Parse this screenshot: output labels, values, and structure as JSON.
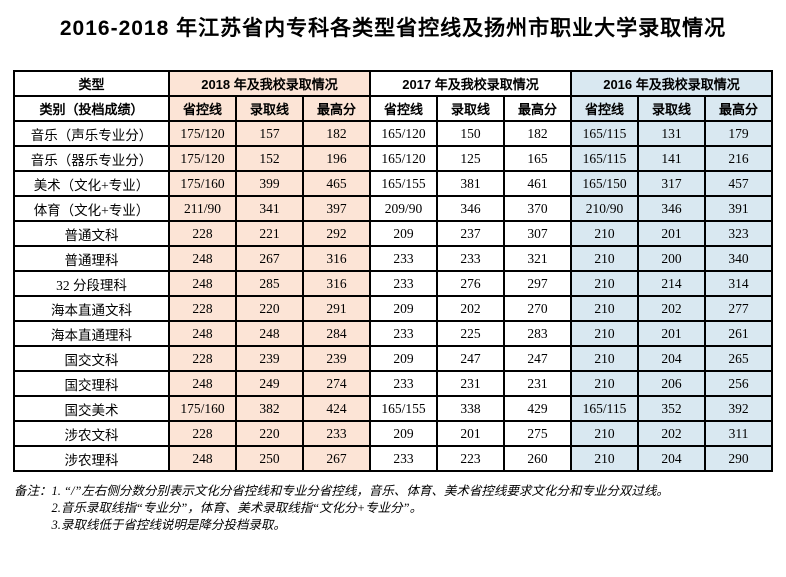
{
  "title": "2016-2018 年江苏省内专科各类型省控线及扬州市职业大学录取情况",
  "table": {
    "header": {
      "type_label": "类型",
      "category_label": "类别（投档成绩）",
      "year_groups": [
        {
          "label": "2018 年及我校录取情况",
          "fill": "#fce4d6"
        },
        {
          "label": "2017 年及我校录取情况",
          "fill": "#ffffff"
        },
        {
          "label": "2016 年及我校录取情况",
          "fill": "#d9e8f1"
        }
      ],
      "sub_columns": [
        "省控线",
        "录取线",
        "最高分"
      ]
    },
    "rows": [
      {
        "label": "音乐（声乐专业分）",
        "y2018": [
          "175/120",
          "157",
          "182"
        ],
        "y2017": [
          "165/120",
          "150",
          "182"
        ],
        "y2016": [
          "165/115",
          "131",
          "179"
        ]
      },
      {
        "label": "音乐（器乐专业分）",
        "y2018": [
          "175/120",
          "152",
          "196"
        ],
        "y2017": [
          "165/120",
          "125",
          "165"
        ],
        "y2016": [
          "165/115",
          "141",
          "216"
        ]
      },
      {
        "label": "美术（文化+专业）",
        "y2018": [
          "175/160",
          "399",
          "465"
        ],
        "y2017": [
          "165/155",
          "381",
          "461"
        ],
        "y2016": [
          "165/150",
          "317",
          "457"
        ]
      },
      {
        "label": "体育（文化+专业）",
        "y2018": [
          "211/90",
          "341",
          "397"
        ],
        "y2017": [
          "209/90",
          "346",
          "370"
        ],
        "y2016": [
          "210/90",
          "346",
          "391"
        ]
      },
      {
        "label": "普通文科",
        "y2018": [
          "228",
          "221",
          "292"
        ],
        "y2017": [
          "209",
          "237",
          "307"
        ],
        "y2016": [
          "210",
          "201",
          "323"
        ]
      },
      {
        "label": "普通理科",
        "y2018": [
          "248",
          "267",
          "316"
        ],
        "y2017": [
          "233",
          "233",
          "321"
        ],
        "y2016": [
          "210",
          "200",
          "340"
        ]
      },
      {
        "label": "32 分段理科",
        "y2018": [
          "248",
          "285",
          "316"
        ],
        "y2017": [
          "233",
          "276",
          "297"
        ],
        "y2016": [
          "210",
          "214",
          "314"
        ]
      },
      {
        "label": "海本直通文科",
        "y2018": [
          "228",
          "220",
          "291"
        ],
        "y2017": [
          "209",
          "202",
          "270"
        ],
        "y2016": [
          "210",
          "202",
          "277"
        ]
      },
      {
        "label": "海本直通理科",
        "y2018": [
          "248",
          "248",
          "284"
        ],
        "y2017": [
          "233",
          "225",
          "283"
        ],
        "y2016": [
          "210",
          "201",
          "261"
        ]
      },
      {
        "label": "国交文科",
        "y2018": [
          "228",
          "239",
          "239"
        ],
        "y2017": [
          "209",
          "247",
          "247"
        ],
        "y2016": [
          "210",
          "204",
          "265"
        ]
      },
      {
        "label": "国交理科",
        "y2018": [
          "248",
          "249",
          "274"
        ],
        "y2017": [
          "233",
          "231",
          "231"
        ],
        "y2016": [
          "210",
          "206",
          "256"
        ]
      },
      {
        "label": "国交美术",
        "y2018": [
          "175/160",
          "382",
          "424"
        ],
        "y2017": [
          "165/155",
          "338",
          "429"
        ],
        "y2016": [
          "165/115",
          "352",
          "392"
        ]
      },
      {
        "label": "涉农文科",
        "y2018": [
          "228",
          "220",
          "233"
        ],
        "y2017": [
          "209",
          "201",
          "275"
        ],
        "y2016": [
          "210",
          "202",
          "311"
        ]
      },
      {
        "label": "涉农理科",
        "y2018": [
          "248",
          "250",
          "267"
        ],
        "y2017": [
          "233",
          "223",
          "260"
        ],
        "y2016": [
          "210",
          "204",
          "290"
        ]
      }
    ]
  },
  "notes": {
    "label": "备注：",
    "items": [
      "1. “/”左右侧分数分别表示文化分省控线和专业分省控线，音乐、体育、美术省控线要求文化分和专业分双过线。",
      "2.音乐录取线指“专业分”，体育、美术录取线指“文化分+专业分”。",
      "3.录取线低于省控线说明是降分投档录取。"
    ]
  },
  "colors": {
    "year_2018_fill": "#fce4d6",
    "year_2016_fill": "#d9e8f1",
    "border": "#000000",
    "text": "#000000"
  }
}
